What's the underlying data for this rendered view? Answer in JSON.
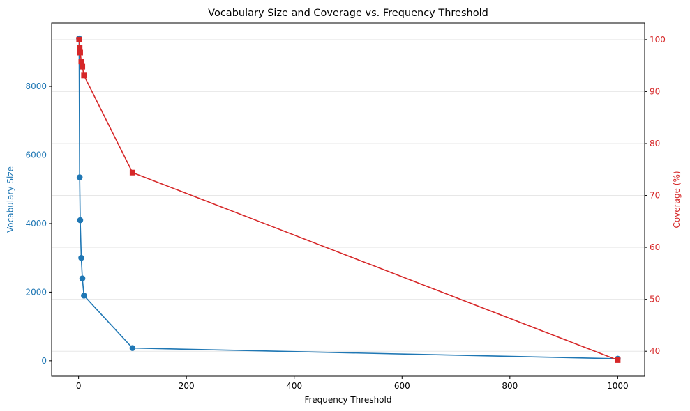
{
  "chart_data": {
    "type": "line",
    "title": "Vocabulary Size and Coverage vs. Frequency Threshold",
    "xlabel": "Frequency Threshold",
    "x_ticks": [
      0,
      200,
      400,
      600,
      800,
      1000
    ],
    "xlim": [
      -50,
      1050
    ],
    "grid": "horizontal",
    "x": [
      1,
      2,
      3,
      5,
      7,
      10,
      100,
      1000
    ],
    "series": [
      {
        "name": "Vocabulary Size",
        "axis": "left",
        "color": "#1f77b4",
        "marker": "circle",
        "values": [
          9400,
          5350,
          4100,
          3000,
          2400,
          1900,
          370,
          60
        ]
      },
      {
        "name": "Coverage (%)",
        "axis": "right",
        "color": "#d62728",
        "marker": "square",
        "values": [
          100.0,
          98.4,
          97.5,
          95.8,
          94.8,
          93.1,
          74.4,
          38.3
        ]
      }
    ],
    "y_left": {
      "label": "Vocabulary Size",
      "ticks": [
        0,
        2000,
        4000,
        6000,
        8000
      ],
      "ylim": [
        -450,
        9850
      ],
      "color": "#1f77b4"
    },
    "y_right": {
      "label": "Coverage (%)",
      "ticks": [
        40,
        50,
        60,
        70,
        80,
        90,
        100
      ],
      "ylim": [
        35.2,
        103.2
      ],
      "color": "#d62728"
    }
  }
}
